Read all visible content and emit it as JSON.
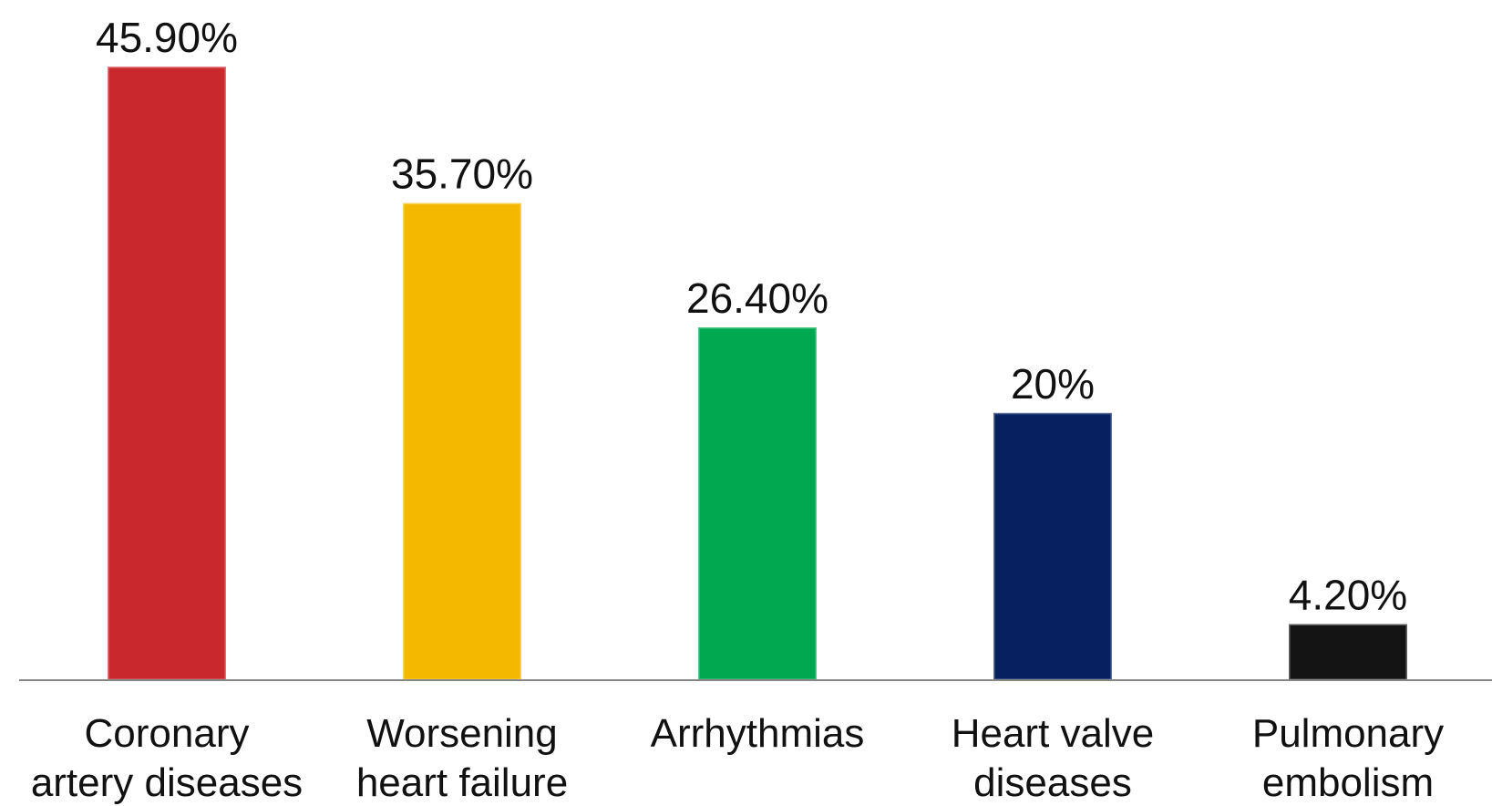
{
  "chart_data": {
    "type": "bar",
    "categories": [
      "Coronary\nartery diseases",
      "Worsening\nheart failure",
      "Arrhythmias",
      "Heart valve\ndiseases",
      "Pulmonary\nembolism"
    ],
    "values": [
      45.9,
      35.7,
      26.4,
      20,
      4.2
    ],
    "value_labels": [
      "45.90%",
      "35.70%",
      "26.40%",
      "20%",
      "4.20%"
    ],
    "colors": [
      "#c9282d",
      "#f5b800",
      "#00a84f",
      "#062060",
      "#141414"
    ],
    "ylim": [
      0,
      50
    ]
  }
}
